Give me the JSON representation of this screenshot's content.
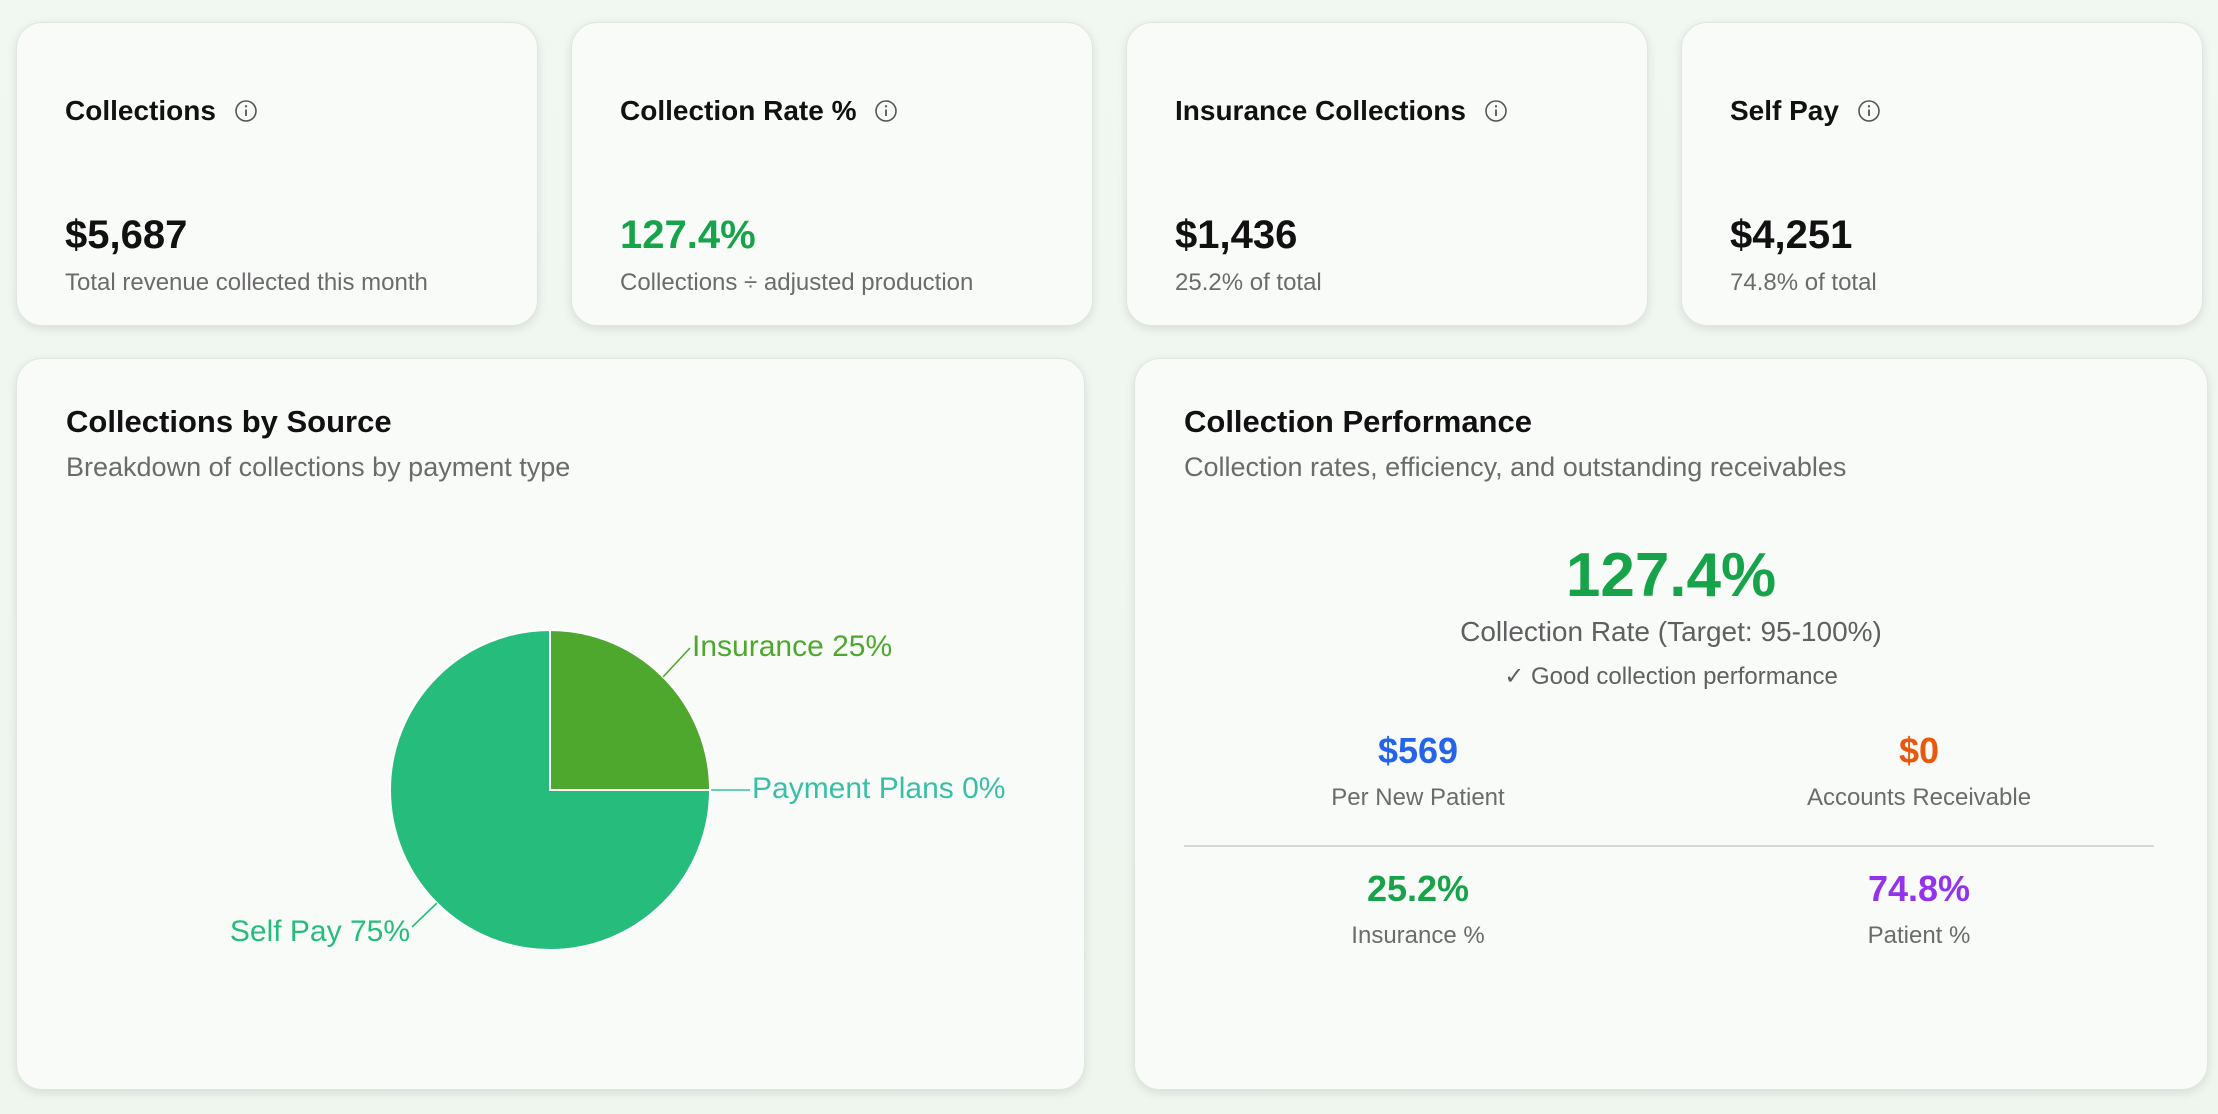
{
  "kpis": [
    {
      "title": "Collections",
      "value": "$5,687",
      "subtitle": "Total revenue collected this month",
      "value_color": "#111111"
    },
    {
      "title": "Collection Rate %",
      "value": "127.4%",
      "subtitle": "Collections ÷ adjusted production",
      "value_color": "#16a34a"
    },
    {
      "title": "Insurance Collections",
      "value": "$1,436",
      "subtitle": "25.2% of total",
      "value_color": "#111111"
    },
    {
      "title": "Self Pay",
      "value": "$4,251",
      "subtitle": "74.8% of total",
      "value_color": "#111111"
    }
  ],
  "source_section": {
    "title": "Collections by Source",
    "subtitle": "Breakdown of collections by payment type"
  },
  "chart_data": {
    "type": "pie",
    "title": "",
    "slices": [
      {
        "label": "Insurance 25%",
        "value": 25,
        "color": "#4ea82e",
        "label_color": "#4ea82e"
      },
      {
        "label": "Payment Plans 0%",
        "value": 0,
        "color": "#38c0a6",
        "label_color": "#38c0a6"
      },
      {
        "label": "Self Pay 75%",
        "value": 75,
        "color": "#26bc7c",
        "label_color": "#26bc7c"
      }
    ]
  },
  "performance": {
    "title": "Collection Performance",
    "subtitle": "Collection rates, efficiency, and outstanding receivables",
    "rate_value": "127.4%",
    "rate_label": "Collection Rate (Target: 95-100%)",
    "status": "✓ Good collection performance",
    "metrics": [
      {
        "value": "$569",
        "label": "Per New Patient",
        "color": "#2563eb"
      },
      {
        "value": "$0",
        "label": "Accounts Receivable",
        "color": "#ea580c"
      },
      {
        "value": "25.2%",
        "label": "Insurance %",
        "color": "#16a34a"
      },
      {
        "value": "74.8%",
        "label": "Patient %",
        "color": "#9333ea"
      }
    ]
  },
  "colors": {
    "accent_green": "#16a34a",
    "muted_text": "#6b6b6b"
  },
  "icons": {
    "info": "info-circle-icon"
  }
}
